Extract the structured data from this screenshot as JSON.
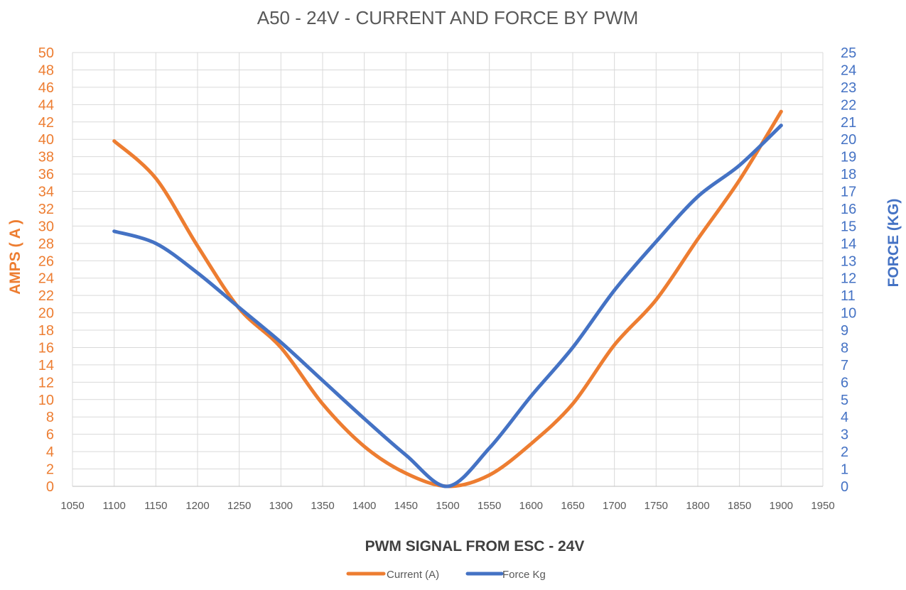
{
  "chart_data": {
    "type": "line",
    "title": "A50 - 24V - CURRENT AND FORCE BY PWM",
    "xlabel": "PWM SIGNAL FROM ESC - 24V",
    "ylabel_left": "AMPS ( A )",
    "ylabel_right": "FORCE (KG)",
    "xlim": [
      1050,
      1950
    ],
    "x_ticks": [
      1050,
      1100,
      1150,
      1200,
      1250,
      1300,
      1350,
      1400,
      1450,
      1500,
      1550,
      1600,
      1650,
      1700,
      1750,
      1800,
      1850,
      1900,
      1950
    ],
    "ylim_left": [
      0,
      50
    ],
    "y_ticks_left": [
      0,
      2,
      4,
      6,
      8,
      10,
      12,
      14,
      16,
      18,
      20,
      22,
      24,
      26,
      28,
      30,
      32,
      34,
      36,
      38,
      40,
      42,
      44,
      46,
      48,
      50
    ],
    "ylim_right": [
      0,
      25
    ],
    "y_ticks_right": [
      0,
      1,
      2,
      3,
      4,
      5,
      6,
      7,
      8,
      9,
      10,
      11,
      12,
      13,
      14,
      15,
      16,
      17,
      18,
      19,
      20,
      21,
      22,
      23,
      24,
      25
    ],
    "grid": true,
    "legend_position": "bottom",
    "x": [
      1100,
      1150,
      1200,
      1250,
      1300,
      1350,
      1400,
      1450,
      1500,
      1550,
      1600,
      1650,
      1700,
      1750,
      1800,
      1850,
      1900
    ],
    "series": [
      {
        "name": "Current (A)",
        "axis": "left",
        "color": "#ED7D31",
        "values": [
          39.8,
          35.5,
          27.7,
          20.5,
          16.0,
          9.5,
          4.6,
          1.5,
          0,
          1.3,
          4.9,
          9.5,
          16.3,
          21.5,
          28.5,
          35.3,
          43.2
        ]
      },
      {
        "name": "Force Kg",
        "axis": "right",
        "color": "#4472C4",
        "values": [
          14.7,
          14.0,
          12.3,
          10.3,
          8.3,
          6.1,
          3.9,
          1.8,
          0,
          2.2,
          5.2,
          8.0,
          11.3,
          14.1,
          16.7,
          18.5,
          20.8
        ]
      }
    ]
  }
}
